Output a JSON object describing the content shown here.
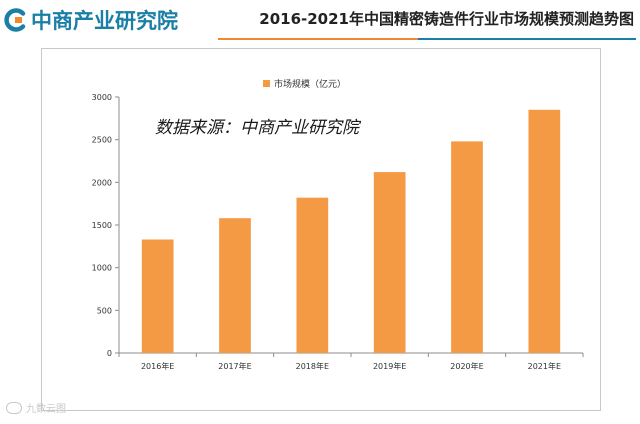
{
  "header": {
    "logo_text": "中商产业研究院",
    "title": "2016-2021年中国精密铸造件行业市场规模预测趋势图"
  },
  "colors": {
    "bar": "#f59a44",
    "logo_blue": "#1a7fa6",
    "logo_orange": "#f08a2e",
    "rule_orange": "#f08a2e",
    "rule_blue": "#1a7fa6",
    "axis": "#8c8c8c",
    "text": "#333333"
  },
  "watermark": {
    "text": "九数云图"
  },
  "chart_data": {
    "type": "bar",
    "categories": [
      "2016年E",
      "2017年E",
      "2018年E",
      "2019年E",
      "2020年E",
      "2021年E"
    ],
    "series": [
      {
        "name": "市场规模（亿元）",
        "values": [
          1330,
          1580,
          1820,
          2120,
          2480,
          2850
        ]
      }
    ],
    "annotation": "数据来源：中商产业研究院",
    "ylim": [
      0,
      3000
    ],
    "yticks": [
      0,
      500,
      1000,
      1500,
      2000,
      2500,
      3000
    ],
    "legend_position": "top-center",
    "grid": false
  }
}
